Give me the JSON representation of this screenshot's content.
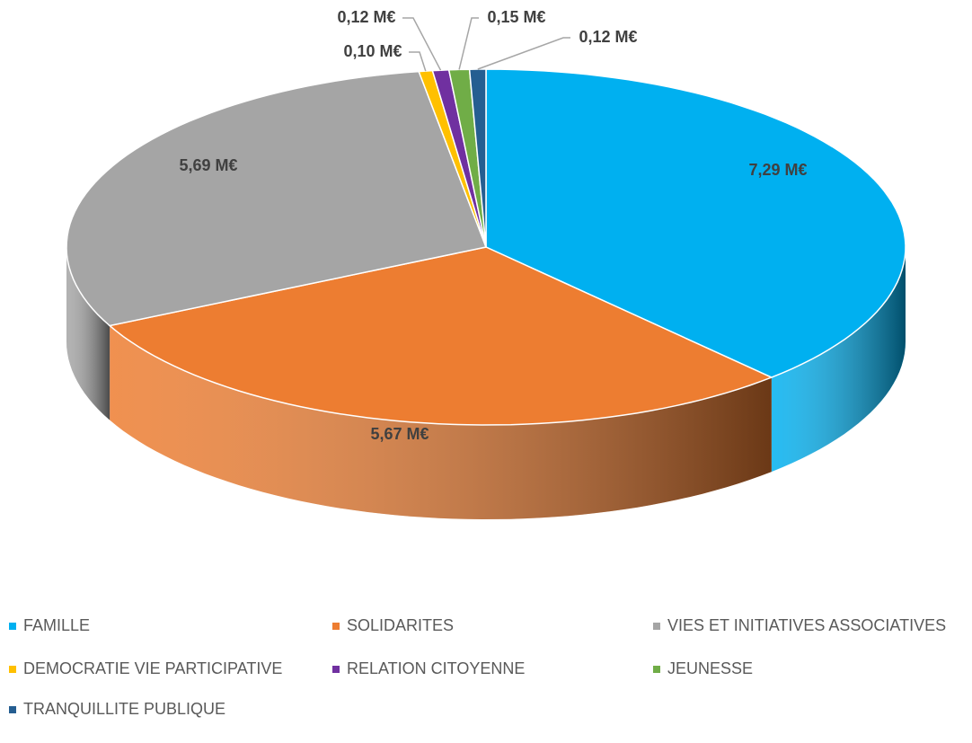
{
  "chart_data": {
    "type": "pie",
    "categories": [
      "FAMILLE",
      "SOLIDARITES",
      "VIES ET INITIATIVES ASSOCIATIVES",
      "DEMOCRATIE VIE PARTICIPATIVE",
      "RELATION CITOYENNE",
      "JEUNESSE",
      "TRANQUILLITE PUBLIQUE"
    ],
    "values": [
      7.29,
      5.67,
      5.69,
      0.1,
      0.12,
      0.15,
      0.12
    ],
    "value_labels": [
      "7,29 M€",
      "5,67 M€",
      "5,69 M€",
      "0,10 M€",
      "0,12 M€",
      "0,15 M€",
      "0,12 M€"
    ],
    "colors": [
      "#00b0f0",
      "#ed7d31",
      "#a5a5a5",
      "#ffc000",
      "#7030a0",
      "#70ad47",
      "#255e91"
    ],
    "legend": "bottom"
  }
}
